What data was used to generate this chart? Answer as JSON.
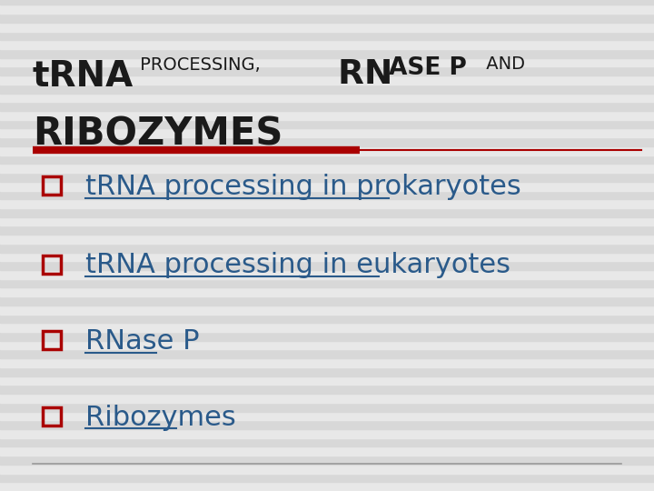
{
  "background_color": "#e8e8e8",
  "title_line1_parts": [
    {
      "text": "tRNA",
      "style": "bold",
      "size": 32,
      "color": "#1a1a1a"
    },
    {
      "text": " PROCESSING,  ",
      "style": "normal",
      "size": 18,
      "color": "#1a1a1a"
    },
    {
      "text": "RN",
      "style": "bold",
      "size": 30,
      "color": "#1a1a1a"
    },
    {
      "text": "ASE P",
      "style": "normal_bold_mix",
      "size": 22,
      "color": "#1a1a1a"
    },
    {
      "text": " AND",
      "style": "normal",
      "size": 18,
      "color": "#1a1a1a"
    }
  ],
  "title_line2": "RIBOZYMES",
  "title_line2_size": 34,
  "title_line2_color": "#1a1a1a",
  "separator_color_thick": "#aa0000",
  "separator_color_thin": "#aa0000",
  "bullet_color": "#aa0000",
  "bullet_items": [
    "tRNA processing in prokaryotes",
    "tRNA processing in eukaryotes",
    "RNase P",
    "Ribozymes"
  ],
  "bullet_text_color": "#2a5a8a",
  "bullet_text_size": 22,
  "bottom_line_color": "#999999",
  "stripe_colors": [
    "#e8e8e8",
    "#d8d8d8"
  ]
}
